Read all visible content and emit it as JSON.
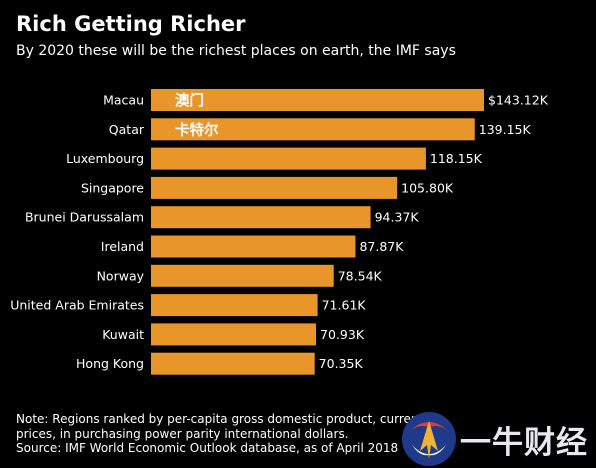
{
  "title": "Rich Getting Richer",
  "subtitle": "By 2020 these will be the richest places on earth, the IMF says",
  "note": {
    "line1": "Note: Regions ranked by per-capita gross domestic product, current",
    "line2": "prices, in purchasing power parity international dollars.",
    "line3": "Source: IMF World Economic Outlook database, as of April 2018"
  },
  "watermark": {
    "text": "一牛财经",
    "icon": "bull-logo-icon"
  },
  "chart_data": {
    "type": "bar",
    "orientation": "horizontal",
    "categories": [
      "Macau",
      "Qatar",
      "Luxembourg",
      "Singapore",
      "Brunei Darussalam",
      "Ireland",
      "Norway",
      "United Arab Emirates",
      "Kuwait",
      "Hong Kong"
    ],
    "values": [
      143.12,
      139.15,
      118.15,
      105.8,
      94.37,
      87.87,
      78.54,
      71.61,
      70.93,
      70.35
    ],
    "data_labels": [
      "$143.12K",
      "139.15K",
      "118.15K",
      "105.80K",
      "94.37K",
      "87.87K",
      "78.54K",
      "71.61K",
      "70.93K",
      "70.35K"
    ],
    "bar_annotations": [
      "澳门",
      "卡特尔",
      "",
      "",
      "",
      "",
      "",
      "",
      "",
      ""
    ],
    "bar_color": "#e8962a",
    "background": "#000000",
    "xlim": [
      0,
      143.12
    ],
    "grid": false,
    "legend": "none"
  }
}
